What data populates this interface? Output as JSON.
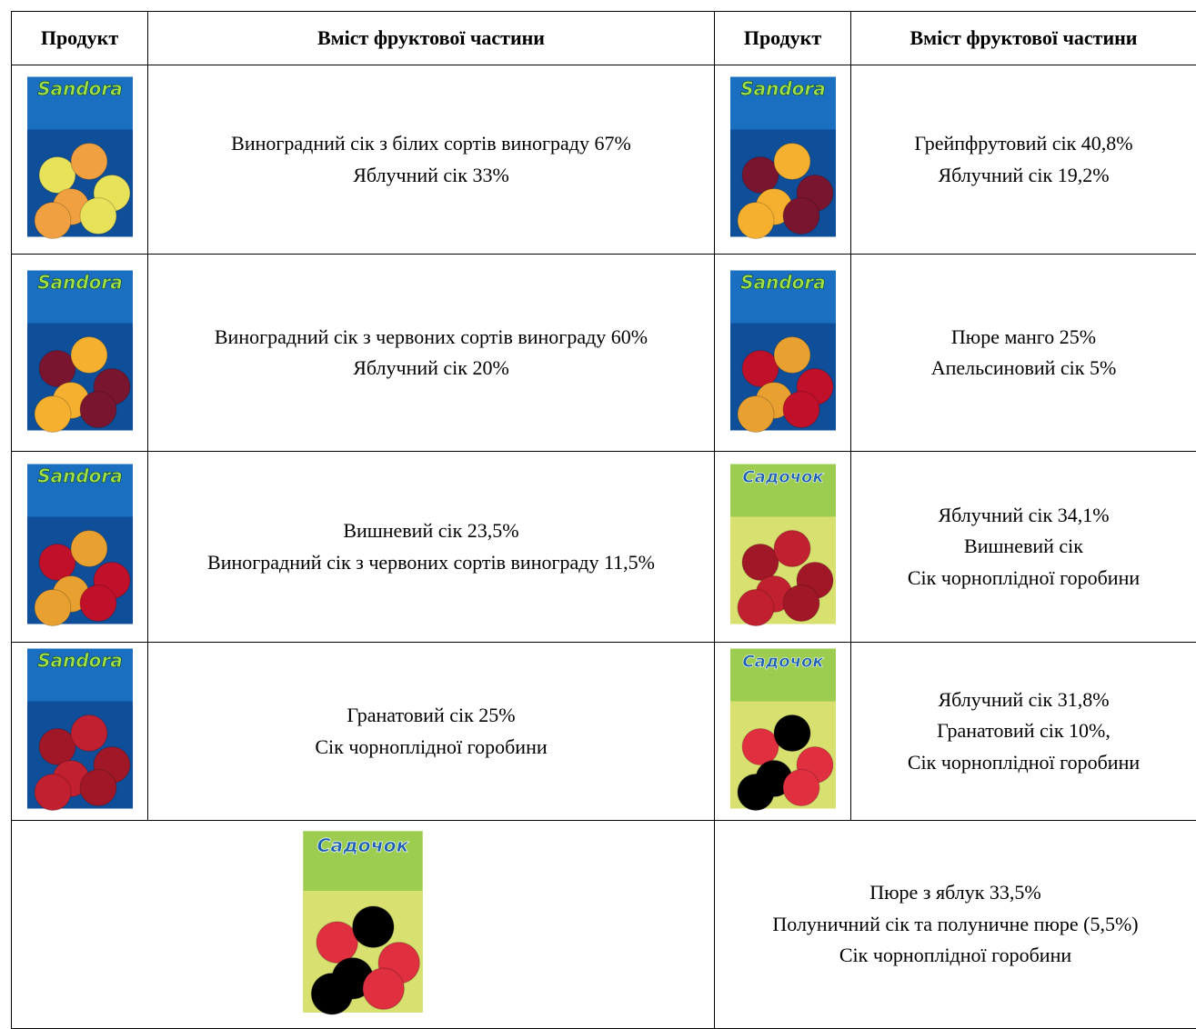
{
  "table": {
    "headers": [
      "Продукт",
      "Вміст фруктової частини",
      "Продукт",
      "Вміст фруктової частини"
    ],
    "rows": [
      {
        "left": {
          "brand": "Sandora",
          "lines": [
            "Виноградний сік з білих сортів винограду 67%",
            "Яблучний сік 33%"
          ]
        },
        "right": {
          "brand": "Sandora",
          "lines": [
            "Грейпфрутовий сік 40,8%",
            "Яблучний сік 19,2%"
          ]
        }
      },
      {
        "left": {
          "brand": "Sandora",
          "lines": [
            "Виноградний сік з червоних сортів винограду 60%",
            "Яблучний сік 20%"
          ]
        },
        "right": {
          "brand": "Sandora",
          "lines": [
            "Пюре манго 25%",
            "Апельсиновий сік 5%"
          ]
        }
      },
      {
        "left": {
          "brand": "Sandora",
          "lines": [
            "Вишневий сік 23,5%",
            "Виноградний сік з червоних сортів винограду 11,5%"
          ]
        },
        "right": {
          "brand": "Садочок",
          "lines": [
            "Яблучний сік 34,1%",
            "Вишневий сік",
            "Сік чорноплідної горобини"
          ]
        }
      },
      {
        "left": {
          "brand": "Sandora",
          "lines": [
            "Гранатовий сік 25%",
            "Сік чорноплідної горобини"
          ]
        },
        "right": {
          "brand": "Садочок",
          "lines": [
            "Яблучний сік 31,8%",
            "Гранатовий сік 10%,",
            "Сік чорноплідної горобини"
          ]
        }
      }
    ],
    "last": {
      "brand": "Садочок",
      "lines": [
        "Пюре з яблук 33,5%",
        "Полуничний сік та полуничне пюре (5,5%)",
        "Сік чорноплідної горобини"
      ]
    }
  }
}
